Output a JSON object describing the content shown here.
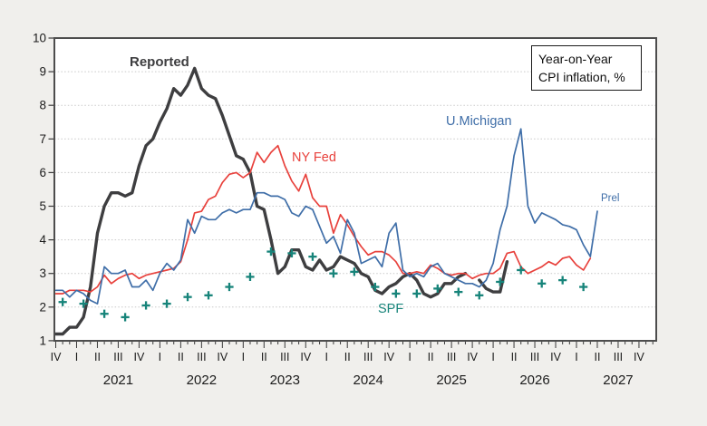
{
  "legend": {
    "line1": "Year-on-Year",
    "line2": "CPI inflation, %"
  },
  "series_labels": {
    "reported": "Reported",
    "nyfed": "NY Fed",
    "umich": "U.Michigan",
    "spf": "SPF",
    "prel": "Prel"
  },
  "colors": {
    "background": "#f0efec",
    "plot_background": "#ffffff",
    "frame": "#4d4d4d",
    "grid": "#c9c9c9",
    "tick": "#3a3a3a",
    "tick_text": "#1b1b1b",
    "reported": "#3e3e40",
    "nyfed": "#e8413c",
    "umich": "#3f6ea8",
    "spf": "#17847a"
  },
  "chart_data": {
    "type": "line",
    "title": "Year-on-Year CPI inflation, %",
    "grid": "dotted horizontal at integers",
    "legend_position": "top-right box",
    "y_axis": {
      "min": 1,
      "max": 10,
      "tick_labels": [
        "1",
        "2",
        "3",
        "4",
        "5",
        "6",
        "7",
        "8",
        "9",
        "10"
      ]
    },
    "x_axis": {
      "start": "2020-Q4",
      "months_shown": 87,
      "quarter_labels": [
        "IV",
        "I",
        "II",
        "III",
        "IV",
        "I",
        "II",
        "III",
        "IV",
        "I",
        "II",
        "III",
        "IV",
        "I",
        "II",
        "III",
        "IV",
        "I",
        "II",
        "III",
        "IV",
        "I",
        "II",
        "III",
        "IV",
        "I",
        "II",
        "III",
        "IV"
      ],
      "year_labels": [
        "2021",
        "2022",
        "2023",
        "2024",
        "2025",
        "2026",
        "2027"
      ]
    },
    "series": [
      {
        "id": "reported",
        "name": "Reported",
        "type": "line",
        "width": 3.4,
        "color_key": "reported",
        "segments": [
          {
            "start_month": 0,
            "values": [
              1.2,
              1.2,
              1.4,
              1.4,
              1.7,
              2.6,
              4.2,
              5.0,
              5.4,
              5.4,
              5.3,
              5.4,
              6.2,
              6.8,
              7.0,
              7.5,
              7.9,
              8.5,
              8.3,
              8.6,
              9.1,
              8.5,
              8.3,
              8.2,
              7.7,
              7.1,
              6.5,
              6.4,
              6.0,
              5.0,
              4.9,
              4.0,
              3.0,
              3.2,
              3.7,
              3.7,
              3.2,
              3.1,
              3.4,
              3.1,
              3.2,
              3.5,
              3.4,
              3.3,
              3.0,
              2.9,
              2.5,
              2.4,
              2.6,
              2.7,
              2.9,
              3.0,
              2.8,
              2.4,
              2.3,
              2.4,
              2.7,
              2.7,
              2.9,
              3.0
            ]
          },
          {
            "start_month": 61,
            "values": [
              2.8,
              2.55,
              2.45,
              2.45,
              3.35
            ]
          }
        ]
      },
      {
        "id": "nyfed",
        "name": "NY Fed",
        "type": "line",
        "width": 1.7,
        "color_key": "nyfed",
        "segments": [
          {
            "start_month": 0,
            "values": [
              2.4,
              2.4,
              2.5,
              2.5,
              2.5,
              2.45,
              2.6,
              2.95,
              2.7,
              2.85,
              2.95,
              3.0,
              2.85,
              2.95,
              3.0,
              3.05,
              3.1,
              3.15,
              3.35,
              4.0,
              4.8,
              4.85,
              5.2,
              5.3,
              5.7,
              5.95,
              6.0,
              5.85,
              6.0,
              6.6,
              6.3,
              6.6,
              6.8,
              6.2,
              5.75,
              5.45,
              5.95,
              5.25,
              5.0,
              5.0,
              4.2,
              4.75,
              4.45,
              4.1,
              3.8,
              3.55,
              3.65,
              3.65,
              3.55,
              3.35,
              3.0,
              3.0,
              3.05,
              3.0,
              3.25,
              3.15,
              3.0,
              2.95,
              3.0,
              3.0,
              2.85,
              2.95,
              3.0,
              3.0,
              3.15,
              3.6,
              3.65,
              3.2,
              3.0,
              3.1,
              3.2,
              3.35,
              3.25,
              3.45,
              3.5,
              3.25,
              3.1,
              3.45
            ]
          }
        ]
      },
      {
        "id": "umich",
        "name": "U.Michigan",
        "type": "line",
        "width": 1.7,
        "color_key": "umich",
        "segments": [
          {
            "start_month": 0,
            "values": [
              2.5,
              2.5,
              2.3,
              2.5,
              2.4,
              2.2,
              2.1,
              3.2,
              3.0,
              3.0,
              3.1,
              2.6,
              2.6,
              2.8,
              2.5,
              3.0,
              3.3,
              3.1,
              3.4,
              4.6,
              4.2,
              4.7,
              4.6,
              4.6,
              4.8,
              4.9,
              4.8,
              4.9,
              4.9,
              5.4,
              5.4,
              5.3,
              5.3,
              5.2,
              4.8,
              4.7,
              5.0,
              4.9,
              4.4,
              3.9,
              4.1,
              3.6,
              4.6,
              4.2,
              3.3,
              3.4,
              3.5,
              3.2,
              4.2,
              4.5,
              3.1,
              2.9,
              3.0,
              2.9,
              3.2,
              3.3,
              3.0,
              2.9,
              2.8,
              2.7,
              2.7,
              2.6,
              2.8,
              3.3,
              4.3,
              5.0,
              6.5,
              7.3,
              5.0,
              4.5,
              4.8,
              4.7,
              4.6,
              4.45,
              4.4,
              4.3,
              3.85,
              3.5,
              4.85
            ]
          }
        ]
      },
      {
        "id": "spf",
        "name": "SPF",
        "type": "plus_markers",
        "color_key": "spf",
        "start_month": 1,
        "step_months": 3,
        "values": [
          2.15,
          2.1,
          1.8,
          1.7,
          2.05,
          2.1,
          2.3,
          2.35,
          2.6,
          2.9,
          3.65,
          3.6,
          3.5,
          3.0,
          3.05,
          2.6,
          2.4,
          2.4,
          2.55,
          2.45,
          2.35,
          2.75,
          3.1,
          2.7,
          2.8,
          2.6
        ]
      }
    ]
  }
}
